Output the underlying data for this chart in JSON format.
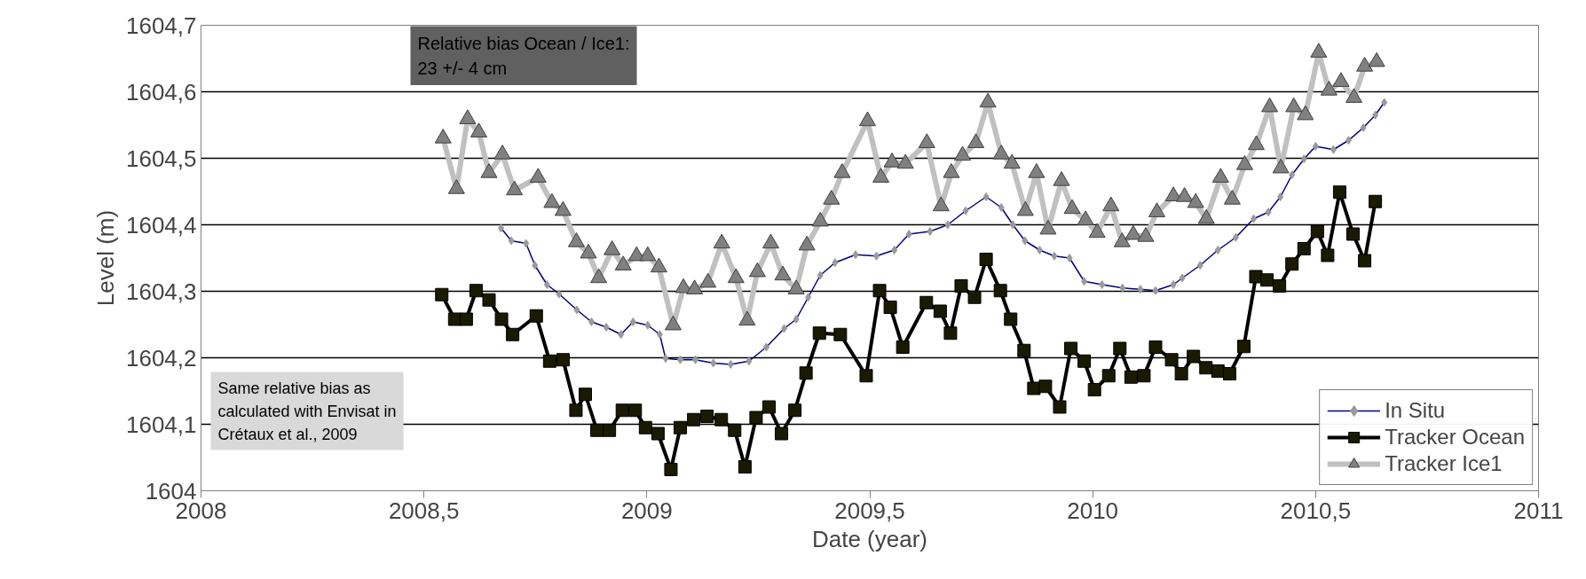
{
  "chart_data": {
    "type": "line",
    "xlabel": "Date (year)",
    "ylabel": "Level (m)",
    "xlim": [
      2008,
      2011
    ],
    "xticks": [
      2008,
      {
        "value": 2008.5,
        "label": "2008,5"
      },
      2009,
      {
        "value": 2009.5,
        "label": "2009,5"
      },
      2010,
      {
        "value": 2010.5,
        "label": "2010,5"
      },
      2011
    ],
    "ylim": [
      1604,
      1604.7
    ],
    "yticks": [
      1604,
      {
        "value": 1604.1,
        "label": "1604,1"
      },
      {
        "value": 1604.2,
        "label": "1604,2"
      },
      {
        "value": 1604.3,
        "label": "1604,3"
      },
      {
        "value": 1604.4,
        "label": "1604,4"
      },
      {
        "value": 1604.5,
        "label": "1604,5"
      },
      {
        "value": 1604.6,
        "label": "1604,6"
      },
      {
        "value": 1604.7,
        "label": "1604,7"
      }
    ],
    "grid": "y",
    "legend": "bottom right",
    "annotations": [
      "Relative bias Ocean / Ice1:\n23 +/- 4 cm",
      "Same relative bias as\ncalculated with Envisat in\nCrétaux et al., 2009"
    ],
    "series": [
      {
        "name": "In Situ",
        "color": "#9a9a9a",
        "marker": "diamond",
        "x": [
          2008.673,
          2008.696,
          2008.729,
          2008.749,
          2008.776,
          2008.803,
          2008.843,
          2008.876,
          2008.909,
          2008.942,
          2008.969,
          2009.002,
          2009.029,
          2009.042,
          2009.075,
          2009.109,
          2009.149,
          2009.188,
          2009.229,
          2009.268,
          2009.308,
          2009.335,
          2009.362,
          2009.389,
          2009.422,
          2009.468,
          2009.515,
          2009.555,
          2009.588,
          2009.635,
          2009.675,
          2009.715,
          2009.761,
          2009.795,
          2009.821,
          2009.848,
          2009.881,
          2009.914,
          2009.948,
          2009.981,
          2010.021,
          2010.067,
          2010.107,
          2010.141,
          2010.181,
          2010.201,
          2010.241,
          2010.281,
          2010.321,
          2010.361,
          2010.394,
          2010.421,
          2010.447,
          2010.474,
          2010.5,
          2010.54,
          2010.574,
          2010.607,
          2010.634,
          2010.654
        ],
        "values": [
          1604.395,
          1604.376,
          1604.372,
          1604.339,
          1604.31,
          1604.296,
          1604.272,
          1604.254,
          1604.246,
          1604.235,
          1604.254,
          1604.249,
          1604.235,
          1604.199,
          1604.197,
          1604.197,
          1604.192,
          1604.19,
          1604.195,
          1604.216,
          1604.244,
          1604.258,
          1604.291,
          1604.324,
          1604.343,
          1604.355,
          1604.353,
          1604.362,
          1604.386,
          1604.39,
          1604.4,
          1604.421,
          1604.442,
          1604.426,
          1604.4,
          1604.376,
          1604.362,
          1604.353,
          1604.35,
          1604.315,
          1604.31,
          1604.305,
          1604.303,
          1604.301,
          1604.31,
          1604.32,
          1604.339,
          1604.362,
          1604.381,
          1604.409,
          1604.419,
          1604.442,
          1604.475,
          1604.499,
          1604.518,
          1604.513,
          1604.527,
          1604.546,
          1604.565,
          1604.584
        ]
      },
      {
        "name": "Tracker Ocean",
        "color": "#000000",
        "marker": "square",
        "x": [
          2008.54,
          2008.569,
          2008.595,
          2008.617,
          2008.646,
          2008.674,
          2008.699,
          2008.752,
          2008.782,
          2008.812,
          2008.841,
          2008.862,
          2008.888,
          2008.916,
          2008.945,
          2008.974,
          2008.997,
          2009.025,
          2009.054,
          2009.075,
          2009.105,
          2009.135,
          2009.167,
          2009.197,
          2009.22,
          2009.245,
          2009.274,
          2009.302,
          2009.332,
          2009.357,
          2009.387,
          2009.434,
          2009.492,
          2009.522,
          2009.546,
          2009.574,
          2009.627,
          2009.658,
          2009.681,
          2009.705,
          2009.735,
          2009.761,
          2009.793,
          2009.816,
          2009.846,
          2009.868,
          2009.894,
          2009.926,
          2009.951,
          2009.981,
          2010.004,
          2010.036,
          2010.061,
          2010.086,
          2010.115,
          2010.141,
          2010.177,
          2010.199,
          2010.226,
          2010.254,
          2010.281,
          2010.307,
          2010.339,
          2010.366,
          2010.391,
          2010.419,
          2010.447,
          2010.474,
          2010.504,
          2010.527,
          2010.554,
          2010.584,
          2010.61,
          2010.634
        ],
        "values": [
          1604.295,
          1604.258,
          1604.258,
          1604.301,
          1604.287,
          1604.258,
          1604.235,
          1604.263,
          1604.195,
          1604.197,
          1604.121,
          1604.145,
          1604.091,
          1604.091,
          1604.121,
          1604.121,
          1604.095,
          1604.086,
          1604.032,
          1604.095,
          1604.107,
          1604.112,
          1604.107,
          1604.091,
          1604.036,
          1604.11,
          1604.126,
          1604.086,
          1604.121,
          1604.177,
          1604.237,
          1604.235,
          1604.173,
          1604.301,
          1604.276,
          1604.216,
          1604.283,
          1604.27,
          1604.237,
          1604.308,
          1604.291,
          1604.348,
          1604.301,
          1604.258,
          1604.211,
          1604.154,
          1604.157,
          1604.126,
          1604.214,
          1604.195,
          1604.152,
          1604.173,
          1604.214,
          1604.171,
          1604.173,
          1604.216,
          1604.197,
          1604.176,
          1604.202,
          1604.185,
          1604.18,
          1604.176,
          1604.217,
          1604.322,
          1604.317,
          1604.308,
          1604.341,
          1604.364,
          1604.39,
          1604.354,
          1604.449,
          1604.386,
          1604.346,
          1604.435
        ]
      },
      {
        "name": "Tracker Ice1",
        "color": "#808080",
        "marker": "triangle",
        "x": [
          2008.543,
          2008.573,
          2008.598,
          2008.623,
          2008.646,
          2008.676,
          2008.703,
          2008.756,
          2008.787,
          2008.812,
          2008.842,
          2008.869,
          2008.892,
          2008.922,
          2008.947,
          2008.977,
          2009.002,
          2009.027,
          2009.059,
          2009.082,
          2009.107,
          2009.137,
          2009.168,
          2009.2,
          2009.225,
          2009.248,
          2009.278,
          2009.305,
          2009.335,
          2009.359,
          2009.389,
          2009.414,
          2009.438,
          2009.495,
          2009.525,
          2009.55,
          2009.58,
          2009.628,
          2009.66,
          2009.683,
          2009.708,
          2009.738,
          2009.765,
          2009.795,
          2009.819,
          2009.849,
          2009.874,
          2009.9,
          2009.93,
          2009.954,
          2009.984,
          2010.01,
          2010.041,
          2010.066,
          2010.091,
          2010.119,
          2010.144,
          2010.181,
          2010.206,
          2010.231,
          2010.255,
          2010.287,
          2010.313,
          2010.341,
          2010.367,
          2010.397,
          2010.422,
          2010.451,
          2010.477,
          2010.507,
          2010.53,
          2010.557,
          2010.586,
          2010.61,
          2010.637
        ],
        "values": [
          1604.53,
          1604.454,
          1604.559,
          1604.539,
          1604.478,
          1604.506,
          1604.452,
          1604.471,
          1604.433,
          1604.421,
          1604.374,
          1604.357,
          1604.32,
          1604.362,
          1604.339,
          1604.353,
          1604.353,
          1604.336,
          1604.249,
          1604.305,
          1604.303,
          1604.313,
          1604.372,
          1604.32,
          1604.256,
          1604.329,
          1604.372,
          1604.324,
          1604.303,
          1604.369,
          1604.405,
          1604.438,
          1604.478,
          1604.556,
          1604.471,
          1604.494,
          1604.492,
          1604.523,
          1604.428,
          1604.478,
          1604.504,
          1604.523,
          1604.584,
          1604.506,
          1604.492,
          1604.421,
          1604.478,
          1604.393,
          1604.466,
          1604.424,
          1604.407,
          1604.388,
          1604.428,
          1604.374,
          1604.385,
          1604.382,
          1604.419,
          1604.443,
          1604.442,
          1604.433,
          1604.409,
          1604.471,
          1604.438,
          1604.49,
          1604.52,
          1604.577,
          1604.485,
          1604.577,
          1604.565,
          1604.659,
          1604.602,
          1604.615,
          1604.591,
          1604.638,
          1604.645
        ]
      }
    ]
  }
}
